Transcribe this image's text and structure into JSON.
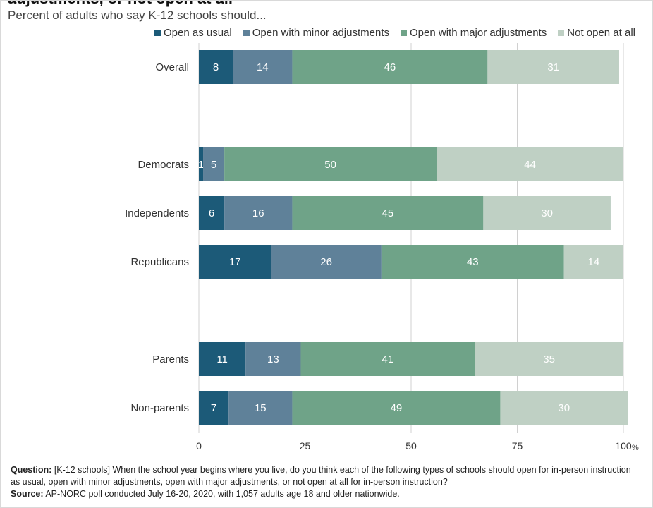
{
  "title": "adjustments, or not open at all",
  "subtitle": "Percent of adults who say K-12 schools should...",
  "footnote": {
    "question_label": "Question:",
    "question_text": "[K-12 schools] When the school year begins where you live, do you think each of the following types of schools should open for in-person instruction as usual, open with minor adjustments, open with major adjustments, or not open at all for in-person instruction?",
    "source_label": "Source:",
    "source_text": "AP-NORC poll conducted July 16-20, 2020, with 1,057 adults age 18 and older nationwide."
  },
  "colors": {
    "open_as_usual": "#1c5a78",
    "minor": "#5f8199",
    "major": "#6fa388",
    "not_open": "#bfd0c4",
    "grid": "#d0d0d0"
  },
  "chart_data": {
    "type": "bar",
    "orientation": "horizontal",
    "stacked": true,
    "title": "adjustments, or not open at all",
    "subtitle": "Percent of adults who say K-12 schools should...",
    "categories": [
      "Overall",
      "Democrats",
      "Independents",
      "Republicans",
      "Parents",
      "Non-parents"
    ],
    "groups": [
      [
        "Overall"
      ],
      [
        "Democrats",
        "Independents",
        "Republicans"
      ],
      [
        "Parents",
        "Non-parents"
      ]
    ],
    "series": [
      {
        "name": "Open as usual",
        "values": [
          8,
          1,
          6,
          17,
          11,
          7
        ]
      },
      {
        "name": "Open with minor adjustments",
        "values": [
          14,
          5,
          16,
          26,
          13,
          15
        ]
      },
      {
        "name": "Open with major adjustments",
        "values": [
          46,
          50,
          45,
          43,
          41,
          49
        ]
      },
      {
        "name": "Not open at all",
        "values": [
          31,
          44,
          30,
          14,
          35,
          30
        ]
      }
    ],
    "x_ticks": [
      "0",
      "25",
      "50",
      "75",
      "100"
    ],
    "x_unit": "%",
    "xlim": [
      0,
      100
    ],
    "grid": true,
    "legend_position": "top-right"
  }
}
